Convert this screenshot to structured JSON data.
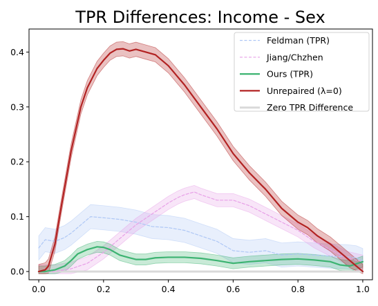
{
  "chart_data": {
    "type": "line",
    "title": "TPR Differences: Income - Sex",
    "xlabel": "",
    "ylabel": "",
    "xlim": [
      -0.03,
      1.03
    ],
    "ylim": [
      -0.015,
      0.442
    ],
    "xticks": [
      0.0,
      0.2,
      0.4,
      0.6,
      0.8,
      1.0
    ],
    "xtick_labels": [
      "0.0",
      "0.2",
      "0.4",
      "0.6",
      "0.8",
      "1.0"
    ],
    "yticks": [
      0.0,
      0.1,
      0.2,
      0.3,
      0.4
    ],
    "ytick_labels": [
      "0.0",
      "0.1",
      "0.2",
      "0.3",
      "0.4"
    ],
    "grid": false,
    "legend_position": "top-right",
    "series": [
      {
        "name": "Feldman (TPR)",
        "color": "#aec7f5",
        "dash": "dashed",
        "band": true,
        "x": [
          0.0,
          0.02,
          0.05,
          0.08,
          0.1,
          0.13,
          0.16,
          0.2,
          0.25,
          0.3,
          0.35,
          0.4,
          0.45,
          0.5,
          0.55,
          0.6,
          0.65,
          0.7,
          0.75,
          0.8,
          0.85,
          0.9,
          0.95,
          0.98,
          1.0
        ],
        "y": [
          0.043,
          0.058,
          0.055,
          0.062,
          0.07,
          0.085,
          0.1,
          0.098,
          0.095,
          0.09,
          0.082,
          0.08,
          0.075,
          0.065,
          0.055,
          0.038,
          0.035,
          0.038,
          0.03,
          0.032,
          0.03,
          0.028,
          0.027,
          0.025,
          0.02
        ],
        "band_halfwidth": 0.022
      },
      {
        "name": "Jiang/Chzhen",
        "color": "#e7a0e7",
        "dash": "dashed",
        "band": true,
        "x": [
          0.0,
          0.05,
          0.1,
          0.15,
          0.2,
          0.25,
          0.3,
          0.35,
          0.4,
          0.43,
          0.45,
          0.48,
          0.5,
          0.55,
          0.6,
          0.65,
          0.7,
          0.75,
          0.8,
          0.85,
          0.9,
          0.95,
          1.0
        ],
        "y": [
          0.0,
          0.0,
          0.005,
          0.015,
          0.035,
          0.06,
          0.085,
          0.105,
          0.125,
          0.135,
          0.14,
          0.145,
          0.14,
          0.13,
          0.13,
          0.12,
          0.105,
          0.09,
          0.075,
          0.055,
          0.04,
          0.025,
          0.018
        ],
        "band_halfwidth": 0.012
      },
      {
        "name": "Ours (TPR)",
        "color": "#3cb371",
        "dash": "solid",
        "band": true,
        "x": [
          0.0,
          0.02,
          0.05,
          0.08,
          0.1,
          0.12,
          0.15,
          0.18,
          0.2,
          0.22,
          0.25,
          0.28,
          0.3,
          0.33,
          0.36,
          0.4,
          0.45,
          0.5,
          0.55,
          0.6,
          0.65,
          0.7,
          0.75,
          0.8,
          0.85,
          0.9,
          0.93,
          0.96,
          1.0
        ],
        "y": [
          0.0,
          0.0,
          0.003,
          0.01,
          0.02,
          0.032,
          0.04,
          0.045,
          0.044,
          0.04,
          0.03,
          0.025,
          0.022,
          0.022,
          0.025,
          0.026,
          0.026,
          0.024,
          0.02,
          0.015,
          0.018,
          0.02,
          0.022,
          0.023,
          0.021,
          0.018,
          0.012,
          0.01,
          0.018
        ],
        "band_halfwidth": 0.01
      },
      {
        "name": "Unrepaired (λ=0)",
        "color": "#b22222",
        "dash": "solid",
        "band": true,
        "x": [
          0.0,
          0.02,
          0.03,
          0.05,
          0.07,
          0.1,
          0.13,
          0.15,
          0.18,
          0.2,
          0.22,
          0.24,
          0.26,
          0.28,
          0.3,
          0.33,
          0.36,
          0.4,
          0.45,
          0.5,
          0.55,
          0.6,
          0.65,
          0.7,
          0.75,
          0.8,
          0.83,
          0.86,
          0.9,
          0.93,
          0.96,
          1.0
        ],
        "y": [
          0.0,
          0.003,
          0.01,
          0.05,
          0.12,
          0.22,
          0.3,
          0.335,
          0.37,
          0.385,
          0.398,
          0.405,
          0.406,
          0.402,
          0.405,
          0.4,
          0.395,
          0.375,
          0.34,
          0.3,
          0.26,
          0.215,
          0.18,
          0.15,
          0.115,
          0.09,
          0.08,
          0.065,
          0.05,
          0.035,
          0.02,
          0.0
        ],
        "band_halfwidth": 0.013
      },
      {
        "name": "Zero TPR Difference",
        "color": "#d9d9d9",
        "dash": "solid",
        "band": false,
        "x": [
          0.0,
          1.0
        ],
        "y": [
          0.0,
          0.0
        ]
      }
    ]
  }
}
